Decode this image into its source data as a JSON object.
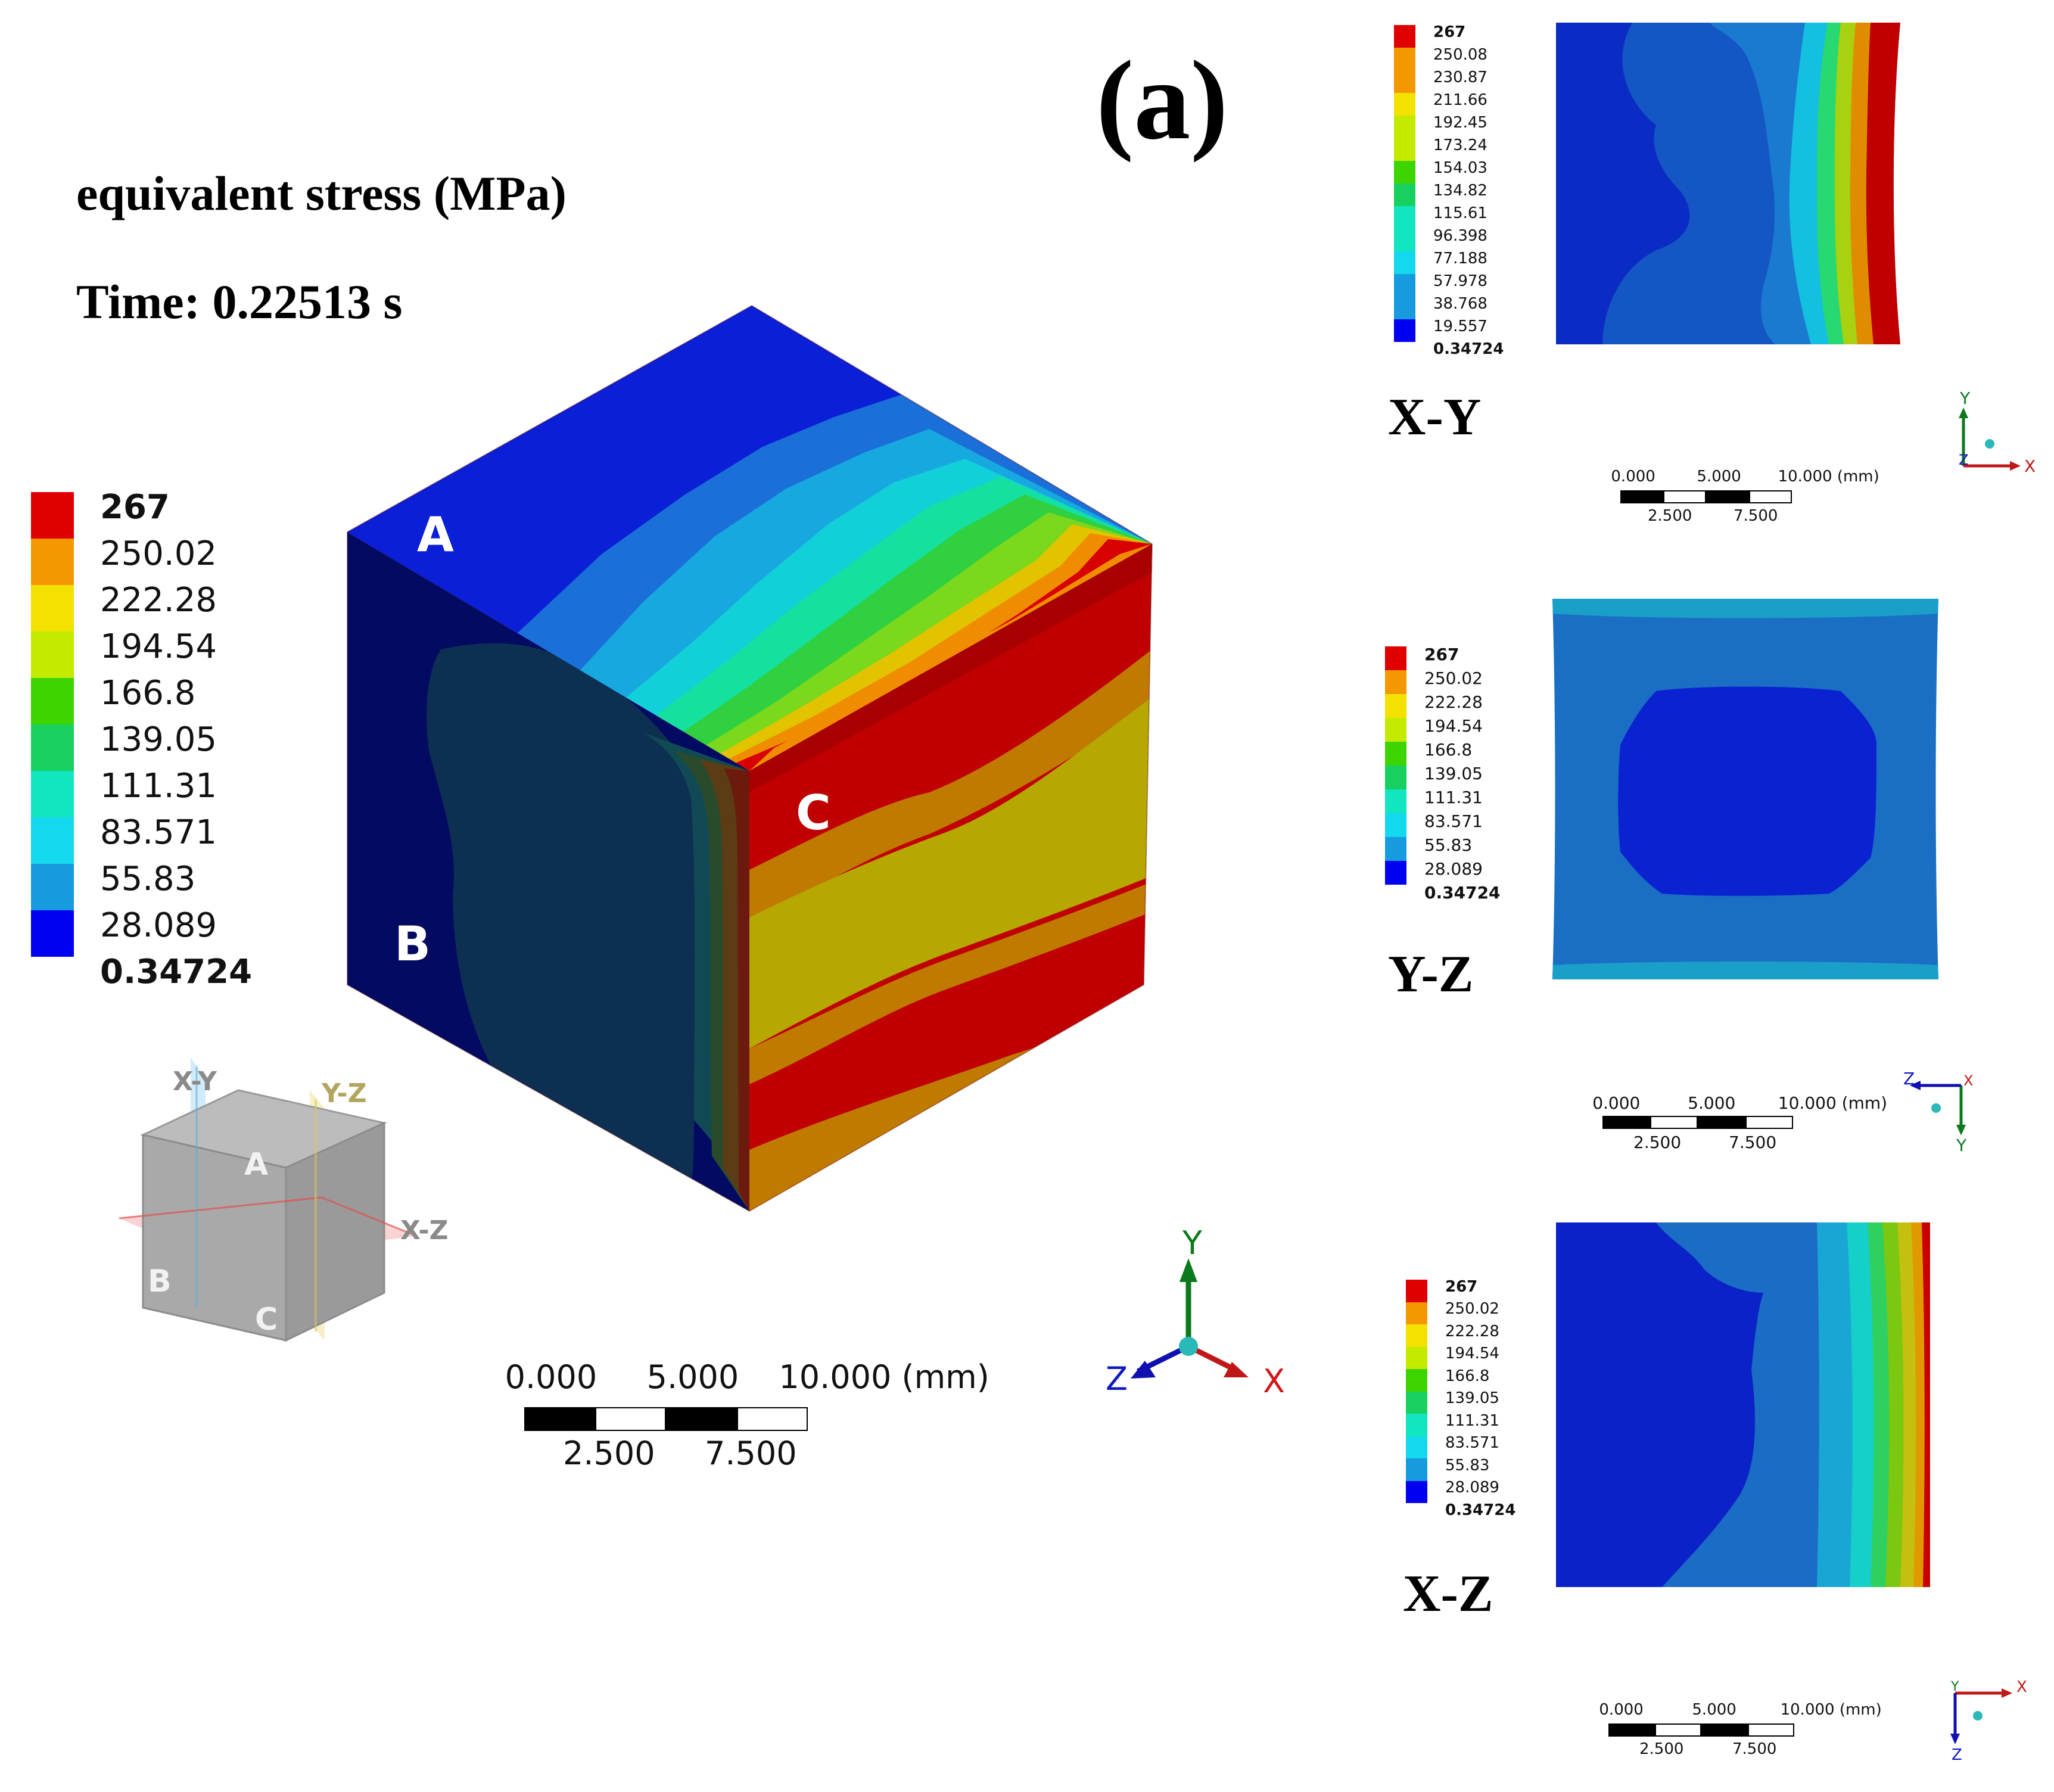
{
  "panel_label": "(a)",
  "title": "equivalent stress (MPa)",
  "time_label": "Time: 0.22513 s",
  "colors": {
    "red": "#e00000",
    "orange": "#f39800",
    "yellow": "#f3e100",
    "yellow_green": "#c4ea00",
    "green": "#3ed400",
    "green2": "#18d060",
    "teal": "#12e6c0",
    "cyan": "#14d8ee",
    "sky": "#169cde",
    "blue": "#0000f0"
  },
  "main_legend": {
    "values": [
      "267",
      "250.02",
      "222.28",
      "194.54",
      "166.8",
      "139.05",
      "111.31",
      "83.571",
      "55.83",
      "28.089",
      "0.34724"
    ]
  },
  "main_view": {
    "face_labels": {
      "a": "A",
      "b": "B",
      "c": "C"
    }
  },
  "schematic": {
    "plane_labels": {
      "xy": "X-Y",
      "yz": "Y-Z",
      "xz": "X-Z"
    },
    "face_labels": {
      "a": "A",
      "b": "B",
      "c": "C"
    }
  },
  "main_scalebar": {
    "top": [
      "0.000",
      "5.000",
      "10.000 (mm)"
    ],
    "bottom": [
      "2.500",
      "7.500"
    ]
  },
  "main_axes": {
    "x": "X",
    "y": "Y",
    "z": "Z"
  },
  "views": [
    {
      "name": "X-Y",
      "legend": [
        "267",
        "250.08",
        "230.87",
        "211.66",
        "192.45",
        "173.24",
        "154.03",
        "134.82",
        "115.61",
        "96.398",
        "77.188",
        "57.978",
        "38.768",
        "19.557",
        "0.34724"
      ],
      "scalebar": {
        "top": [
          "0.000",
          "5.000",
          "10.000 (mm)"
        ],
        "bottom": [
          "2.500",
          "7.500"
        ]
      },
      "axes": {
        "h": "X",
        "v": "Y",
        "third": "Z"
      }
    },
    {
      "name": "Y-Z",
      "legend": [
        "267",
        "250.02",
        "222.28",
        "194.54",
        "166.8",
        "139.05",
        "111.31",
        "83.571",
        "55.83",
        "28.089",
        "0.34724"
      ],
      "scalebar": {
        "top": [
          "0.000",
          "5.000",
          "10.000 (mm)"
        ],
        "bottom": [
          "2.500",
          "7.500"
        ]
      },
      "axes": {
        "h": "Z",
        "v": "Y",
        "third": "X"
      }
    },
    {
      "name": "X-Z",
      "legend": [
        "267",
        "250.02",
        "222.28",
        "194.54",
        "166.8",
        "139.05",
        "111.31",
        "83.571",
        "55.83",
        "28.089",
        "0.34724"
      ],
      "scalebar": {
        "top": [
          "0.000",
          "5.000",
          "10.000 (mm)"
        ],
        "bottom": [
          "2.500",
          "7.500"
        ]
      },
      "axes": {
        "h": "X",
        "v": "Z",
        "third": "Y"
      }
    }
  ]
}
